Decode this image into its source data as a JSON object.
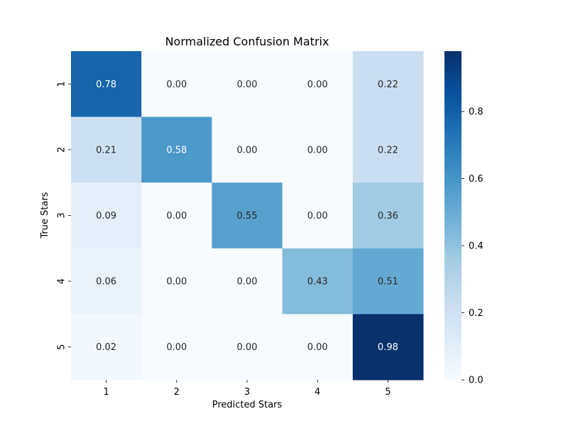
{
  "chart_data": {
    "type": "heatmap",
    "title": "Normalized Confusion Matrix",
    "xlabel": "Predicted Stars",
    "ylabel": "True Stars",
    "x_categories": [
      "1",
      "2",
      "3",
      "4",
      "5"
    ],
    "y_categories": [
      "1",
      "2",
      "3",
      "4",
      "5"
    ],
    "values": [
      [
        0.78,
        0.0,
        0.0,
        0.0,
        0.22
      ],
      [
        0.21,
        0.58,
        0.0,
        0.0,
        0.22
      ],
      [
        0.09,
        0.0,
        0.55,
        0.0,
        0.36
      ],
      [
        0.06,
        0.0,
        0.0,
        0.43,
        0.51
      ],
      [
        0.02,
        0.0,
        0.0,
        0.0,
        0.98
      ]
    ],
    "cell_labels": [
      [
        "0.78",
        "0.00",
        "0.00",
        "0.00",
        "0.22"
      ],
      [
        "0.21",
        "0.58",
        "0.00",
        "0.00",
        "0.22"
      ],
      [
        "0.09",
        "0.00",
        "0.55",
        "0.00",
        "0.36"
      ],
      [
        "0.06",
        "0.00",
        "0.00",
        "0.43",
        "0.51"
      ],
      [
        "0.02",
        "0.00",
        "0.00",
        "0.00",
        "0.98"
      ]
    ],
    "colormap": "Blues",
    "vmin": 0.0,
    "vmax": 0.98,
    "colorbar_ticks": [
      0.0,
      0.2,
      0.4,
      0.6,
      0.8
    ],
    "colorbar_tick_labels": [
      "0.0",
      "0.2",
      "0.4",
      "0.6",
      "0.8"
    ],
    "grid": false
  }
}
